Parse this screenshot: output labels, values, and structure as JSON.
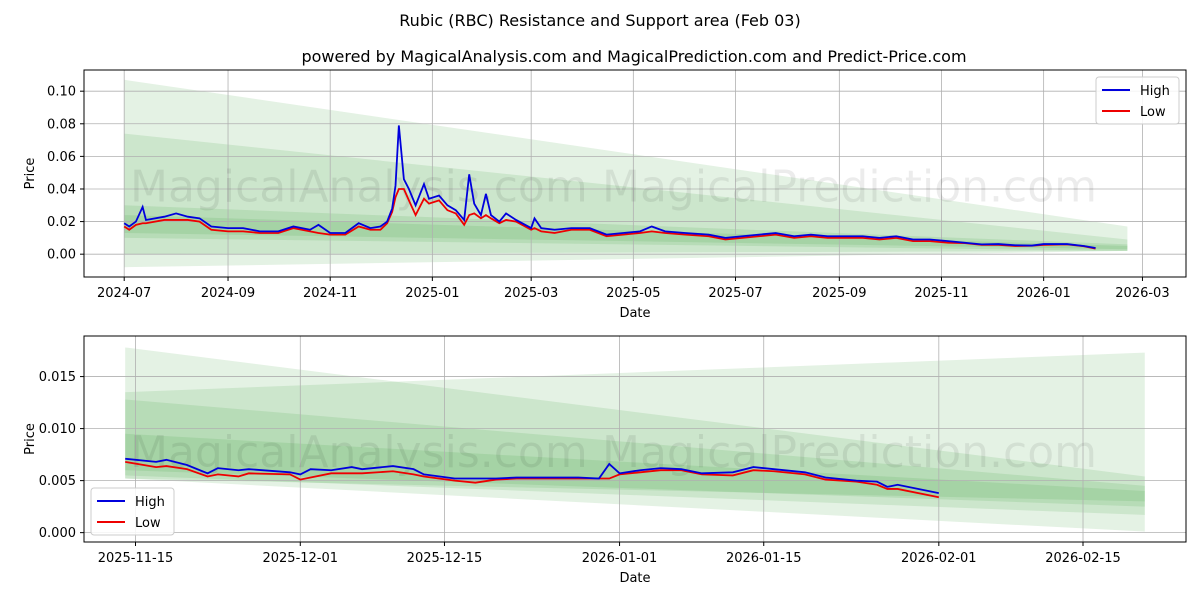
{
  "title": "Rubic (RBC) Resistance and Support area (Feb 03)",
  "subtitle": "powered by MagicalAnalysis.com and MagicalPrediction.com and Predict-Price.com",
  "watermarks": [
    "MagicalAnalysis.com",
    "MagicalPrediction.com"
  ],
  "colors": {
    "high": "#0000dd",
    "low": "#ee0000",
    "band": "#2e9a2e"
  },
  "chart_data": [
    {
      "type": "line",
      "xlabel": "Date",
      "ylabel": "Price",
      "legend": "top-right",
      "grid": true,
      "xlim": [
        "2024-06-07",
        "2026-03-27"
      ],
      "ylim": [
        -0.014,
        0.113
      ],
      "xticks": [
        "2024-07",
        "2024-09",
        "2024-11",
        "2025-01",
        "2025-03",
        "2025-05",
        "2025-07",
        "2025-09",
        "2025-11",
        "2026-01",
        "2026-03"
      ],
      "yticks": [
        0.0,
        0.02,
        0.04,
        0.06,
        0.08,
        0.1
      ],
      "ytick_labels": [
        "0.00",
        "0.02",
        "0.04",
        "0.06",
        "0.08",
        "0.10"
      ],
      "series": [
        {
          "name": "High"
        },
        {
          "name": "Low"
        }
      ],
      "points": [
        [
          "2024-07-01",
          0.019,
          0.017
        ],
        [
          "2024-07-04",
          0.017,
          0.015
        ],
        [
          "2024-07-08",
          0.02,
          0.018
        ],
        [
          "2024-07-12",
          0.029,
          0.019
        ],
        [
          "2024-07-14",
          0.021,
          0.019
        ],
        [
          "2024-07-25",
          0.023,
          0.021
        ],
        [
          "2024-08-01",
          0.025,
          0.021
        ],
        [
          "2024-08-08",
          0.023,
          0.021
        ],
        [
          "2024-08-15",
          0.022,
          0.02
        ],
        [
          "2024-08-22",
          0.017,
          0.015
        ],
        [
          "2024-09-01",
          0.016,
          0.014
        ],
        [
          "2024-09-10",
          0.016,
          0.014
        ],
        [
          "2024-09-20",
          0.014,
          0.013
        ],
        [
          "2024-10-01",
          0.014,
          0.013
        ],
        [
          "2024-10-10",
          0.017,
          0.016
        ],
        [
          "2024-10-20",
          0.015,
          0.014
        ],
        [
          "2024-10-25",
          0.018,
          0.013
        ],
        [
          "2024-11-01",
          0.013,
          0.012
        ],
        [
          "2024-11-10",
          0.013,
          0.012
        ],
        [
          "2024-11-18",
          0.019,
          0.017
        ],
        [
          "2024-11-25",
          0.016,
          0.015
        ],
        [
          "2024-12-01",
          0.017,
          0.015
        ],
        [
          "2024-12-05",
          0.02,
          0.019
        ],
        [
          "2024-12-08",
          0.028,
          0.026
        ],
        [
          "2024-12-10",
          0.042,
          0.035
        ],
        [
          "2024-12-12",
          0.079,
          0.04
        ],
        [
          "2024-12-15",
          0.046,
          0.04
        ],
        [
          "2024-12-18",
          0.04,
          0.033
        ],
        [
          "2024-12-22",
          0.03,
          0.024
        ],
        [
          "2024-12-27",
          0.043,
          0.034
        ],
        [
          "2024-12-30",
          0.034,
          0.031
        ],
        [
          "2025-01-05",
          0.036,
          0.033
        ],
        [
          "2025-01-10",
          0.03,
          0.027
        ],
        [
          "2025-01-15",
          0.027,
          0.025
        ],
        [
          "2025-01-20",
          0.021,
          0.018
        ],
        [
          "2025-01-23",
          0.049,
          0.024
        ],
        [
          "2025-01-26",
          0.031,
          0.025
        ],
        [
          "2025-01-30",
          0.024,
          0.022
        ],
        [
          "2025-02-02",
          0.037,
          0.024
        ],
        [
          "2025-02-05",
          0.024,
          0.022
        ],
        [
          "2025-02-10",
          0.02,
          0.019
        ],
        [
          "2025-02-14",
          0.025,
          0.021
        ],
        [
          "2025-02-20",
          0.021,
          0.02
        ],
        [
          "2025-03-01",
          0.016,
          0.015
        ],
        [
          "2025-03-03",
          0.022,
          0.016
        ],
        [
          "2025-03-07",
          0.016,
          0.014
        ],
        [
          "2025-03-15",
          0.015,
          0.013
        ],
        [
          "2025-03-25",
          0.016,
          0.015
        ],
        [
          "2025-04-05",
          0.016,
          0.015
        ],
        [
          "2025-04-15",
          0.012,
          0.011
        ],
        [
          "2025-04-25",
          0.013,
          0.012
        ],
        [
          "2025-05-05",
          0.014,
          0.013
        ],
        [
          "2025-05-12",
          0.017,
          0.014
        ],
        [
          "2025-05-20",
          0.014,
          0.013
        ],
        [
          "2025-06-01",
          0.013,
          0.012
        ],
        [
          "2025-06-15",
          0.012,
          0.011
        ],
        [
          "2025-06-25",
          0.01,
          0.009
        ],
        [
          "2025-07-05",
          0.011,
          0.01
        ],
        [
          "2025-07-15",
          0.012,
          0.011
        ],
        [
          "2025-07-25",
          0.013,
          0.012
        ],
        [
          "2025-08-05",
          0.011,
          0.01
        ],
        [
          "2025-08-15",
          0.012,
          0.011
        ],
        [
          "2025-08-25",
          0.011,
          0.01
        ],
        [
          "2025-09-05",
          0.011,
          0.01
        ],
        [
          "2025-09-15",
          0.011,
          0.01
        ],
        [
          "2025-09-25",
          0.01,
          0.009
        ],
        [
          "2025-10-05",
          0.011,
          0.01
        ],
        [
          "2025-10-15",
          0.009,
          0.008
        ],
        [
          "2025-10-25",
          0.009,
          0.008
        ],
        [
          "2025-11-05",
          0.008,
          0.007
        ],
        [
          "2025-11-15",
          0.007,
          0.0068
        ],
        [
          "2025-11-25",
          0.006,
          0.0057
        ],
        [
          "2025-12-05",
          0.0062,
          0.0057
        ],
        [
          "2025-12-15",
          0.0055,
          0.005
        ],
        [
          "2025-12-25",
          0.0053,
          0.0052
        ],
        [
          "2026-01-01",
          0.0062,
          0.0057
        ],
        [
          "2026-01-15",
          0.0062,
          0.006
        ],
        [
          "2026-01-25",
          0.005,
          0.0049
        ],
        [
          "2026-02-01",
          0.0038,
          0.0034
        ]
      ],
      "bands": [
        {
          "start": "2024-07-01",
          "end": "2026-02-20",
          "start_range": [
            -0.008,
            0.107
          ],
          "end_range": [
            0.002,
            0.017
          ]
        },
        {
          "start": "2024-07-01",
          "end": "2026-02-20",
          "start_range": [
            0.0,
            0.074
          ],
          "end_range": [
            0.002,
            0.009
          ]
        },
        {
          "start": "2024-07-01",
          "end": "2026-02-20",
          "start_range": [
            0.01,
            0.03
          ],
          "end_range": [
            0.002,
            0.006
          ]
        },
        {
          "start": "2024-07-01",
          "end": "2026-02-20",
          "start_range": [
            0.013,
            0.024
          ],
          "end_range": [
            0.003,
            0.005
          ]
        }
      ]
    },
    {
      "type": "line",
      "xlabel": "Date",
      "ylabel": "Price",
      "legend": "bottom-left",
      "grid": true,
      "xlim": [
        "2025-11-10",
        "2026-02-25"
      ],
      "ylim": [
        -0.0009,
        0.0189
      ],
      "xticks": [
        "2025-11-15",
        "2025-12-01",
        "2025-12-15",
        "2026-01-01",
        "2026-01-15",
        "2026-02-01",
        "2026-02-15"
      ],
      "yticks": [
        0,
        0.005,
        0.01,
        0.015
      ],
      "ytick_labels": [
        "0.000",
        "0.005",
        "0.010",
        "0.015"
      ],
      "series": [
        {
          "name": "High"
        },
        {
          "name": "Low"
        }
      ],
      "points": [
        [
          "2025-11-14",
          0.0071,
          0.0068
        ],
        [
          "2025-11-17",
          0.0068,
          0.0063
        ],
        [
          "2025-11-18",
          0.007,
          0.0064
        ],
        [
          "2025-11-20",
          0.0065,
          0.0061
        ],
        [
          "2025-11-22",
          0.0057,
          0.0054
        ],
        [
          "2025-11-23",
          0.0062,
          0.0056
        ],
        [
          "2025-11-25",
          0.006,
          0.0054
        ],
        [
          "2025-11-26",
          0.0061,
          0.0057
        ],
        [
          "2025-11-30",
          0.0058,
          0.0056
        ],
        [
          "2025-12-01",
          0.0056,
          0.0051
        ],
        [
          "2025-12-02",
          0.0061,
          0.0053
        ],
        [
          "2025-12-04",
          0.006,
          0.0057
        ],
        [
          "2025-12-06",
          0.0063,
          0.0057
        ],
        [
          "2025-12-07",
          0.0061,
          0.0057
        ],
        [
          "2025-12-10",
          0.0064,
          0.0059
        ],
        [
          "2025-12-12",
          0.0061,
          0.0056
        ],
        [
          "2025-12-13",
          0.0056,
          0.0054
        ],
        [
          "2025-12-16",
          0.0052,
          0.005
        ],
        [
          "2025-12-18",
          0.0052,
          0.0048
        ],
        [
          "2025-12-20",
          0.0052,
          0.0051
        ],
        [
          "2025-12-22",
          0.0053,
          0.0052
        ],
        [
          "2025-12-28",
          0.0053,
          0.0052
        ],
        [
          "2025-12-30",
          0.0052,
          0.0052
        ],
        [
          "2025-12-31",
          0.0066,
          0.0052
        ],
        [
          "2026-01-01",
          0.0057,
          0.0056
        ],
        [
          "2026-01-03",
          0.006,
          0.0058
        ],
        [
          "2026-01-05",
          0.0062,
          0.006
        ],
        [
          "2026-01-07",
          0.0061,
          0.006
        ],
        [
          "2026-01-09",
          0.0057,
          0.0056
        ],
        [
          "2026-01-12",
          0.0058,
          0.0055
        ],
        [
          "2026-01-14",
          0.0063,
          0.006
        ],
        [
          "2026-01-16",
          0.0061,
          0.0059
        ],
        [
          "2026-01-19",
          0.0058,
          0.0056
        ],
        [
          "2026-01-21",
          0.0053,
          0.0051
        ],
        [
          "2026-01-24",
          0.005,
          0.0049
        ],
        [
          "2026-01-26",
          0.0049,
          0.0046
        ],
        [
          "2026-01-27",
          0.0044,
          0.0042
        ],
        [
          "2026-01-28",
          0.0046,
          0.0042
        ],
        [
          "2026-02-01",
          0.0038,
          0.0034
        ]
      ],
      "bands": [
        {
          "start": "2025-11-14",
          "end": "2026-02-21",
          "start_range": [
            0.0052,
            0.0178
          ],
          "end_range": [
            0.0001,
            0.0054
          ]
        },
        {
          "start": "2025-11-14",
          "end": "2026-02-21",
          "start_range": [
            0.0052,
            0.0135
          ],
          "end_range": [
            0.003,
            0.0173
          ]
        },
        {
          "start": "2025-11-14",
          "end": "2026-02-21",
          "start_range": [
            0.0055,
            0.0128
          ],
          "end_range": [
            0.0017,
            0.0045
          ]
        },
        {
          "start": "2025-11-14",
          "end": "2026-02-21",
          "start_range": [
            0.006,
            0.0095
          ],
          "end_range": [
            0.0025,
            0.004
          ]
        }
      ]
    }
  ]
}
